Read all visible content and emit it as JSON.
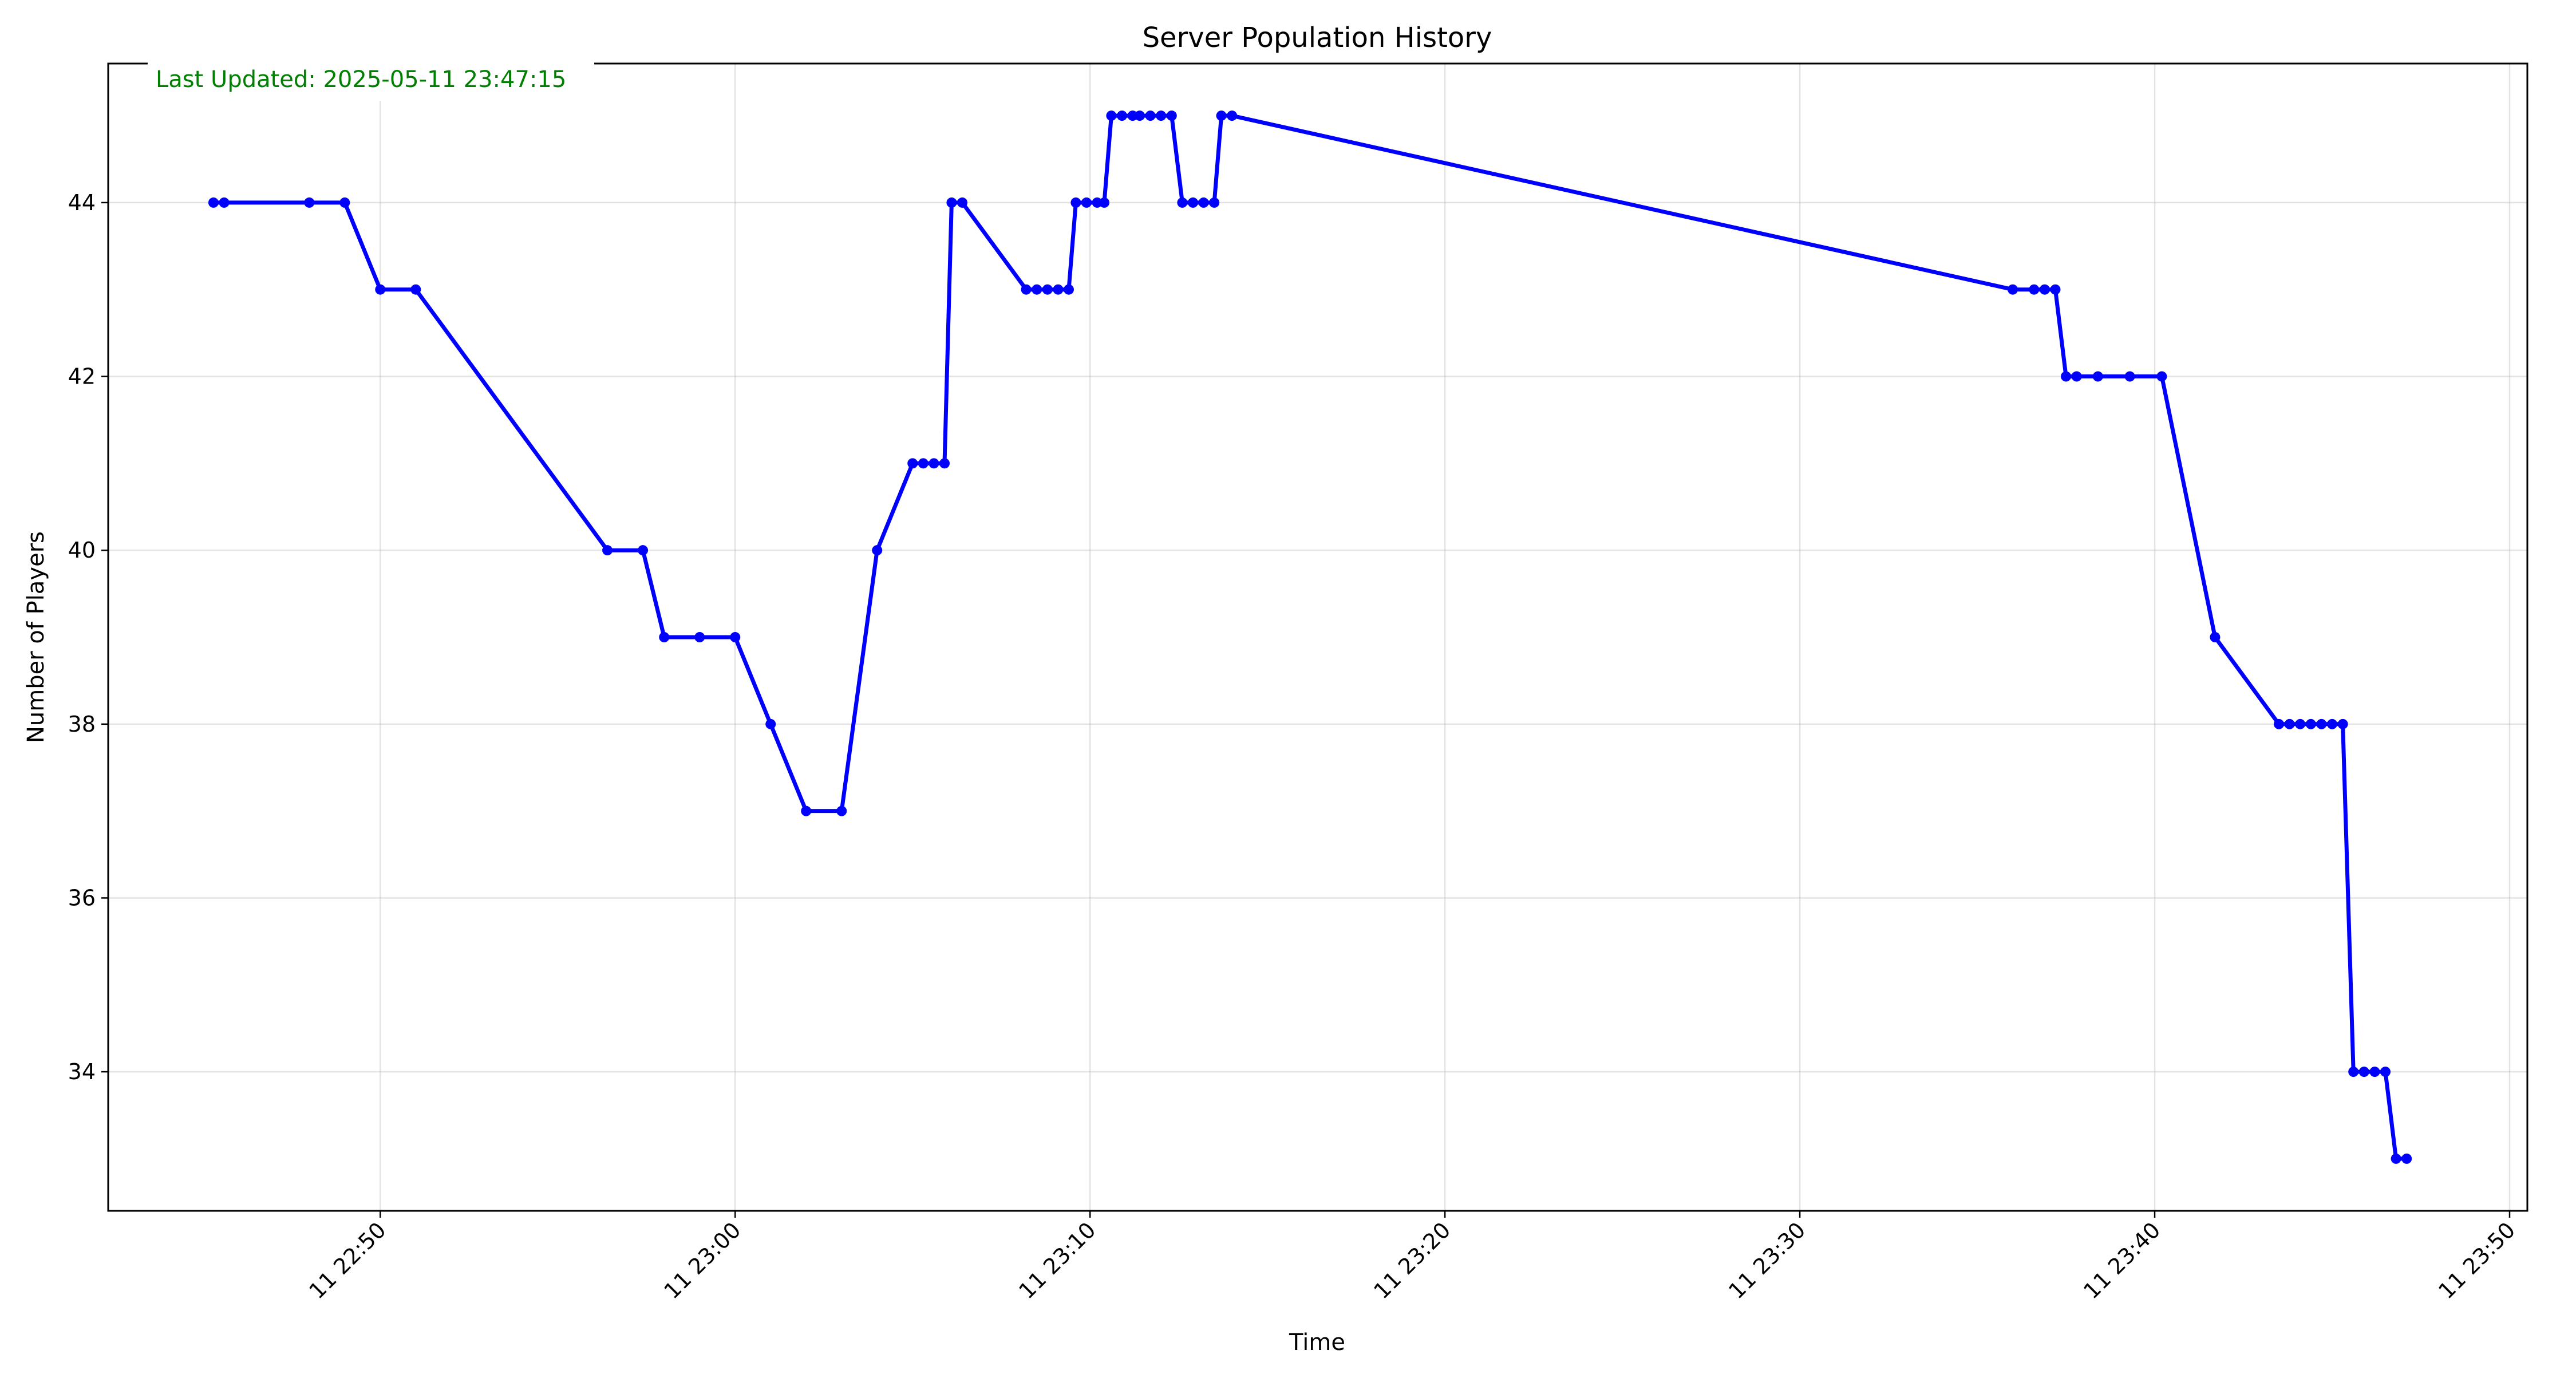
{
  "chart_data": {
    "type": "line",
    "title": "Server Population History",
    "xlabel": "Time",
    "ylabel": "Number of Players",
    "annotation": "Last Updated: 2025-05-11 23:47:15",
    "annotation_color": "#008000",
    "line_color": "#0000ff",
    "grid": true,
    "xlim": [
      "2025-05-11 22:42:20",
      "2025-05-11 23:50:30"
    ],
    "ylim": [
      32.4,
      45.6
    ],
    "x_ticks": [
      {
        "value": "2025-05-11 22:50:00",
        "label": "11 22:50"
      },
      {
        "value": "2025-05-11 23:00:00",
        "label": "11 23:00"
      },
      {
        "value": "2025-05-11 23:10:00",
        "label": "11 23:10"
      },
      {
        "value": "2025-05-11 23:20:00",
        "label": "11 23:20"
      },
      {
        "value": "2025-05-11 23:30:00",
        "label": "11 23:30"
      },
      {
        "value": "2025-05-11 23:40:00",
        "label": "11 23:40"
      },
      {
        "value": "2025-05-11 23:50:00",
        "label": "11 23:50"
      }
    ],
    "y_ticks": [
      34,
      36,
      38,
      40,
      42,
      44
    ],
    "series": [
      {
        "x": [
          "2025-05-11 22:45:18",
          "2025-05-11 22:45:36",
          "2025-05-11 22:48:00",
          "2025-05-11 22:49:00",
          "2025-05-11 22:50:00",
          "2025-05-11 22:51:00",
          "2025-05-11 22:56:24",
          "2025-05-11 22:57:24",
          "2025-05-11 22:58:00",
          "2025-05-11 22:59:00",
          "2025-05-11 23:00:00",
          "2025-05-11 23:01:00",
          "2025-05-11 23:02:00",
          "2025-05-11 23:03:00",
          "2025-05-11 23:04:00",
          "2025-05-11 23:05:00",
          "2025-05-11 23:05:18",
          "2025-05-11 23:05:36",
          "2025-05-11 23:05:54",
          "2025-05-11 23:06:06",
          "2025-05-11 23:06:24",
          "2025-05-11 23:08:12",
          "2025-05-11 23:08:30",
          "2025-05-11 23:08:48",
          "2025-05-11 23:09:06",
          "2025-05-11 23:09:24",
          "2025-05-11 23:09:36",
          "2025-05-11 23:09:54",
          "2025-05-11 23:10:12",
          "2025-05-11 23:10:24",
          "2025-05-11 23:10:36",
          "2025-05-11 23:10:54",
          "2025-05-11 23:11:12",
          "2025-05-11 23:11:24",
          "2025-05-11 23:11:42",
          "2025-05-11 23:12:00",
          "2025-05-11 23:12:18",
          "2025-05-11 23:12:36",
          "2025-05-11 23:12:54",
          "2025-05-11 23:13:12",
          "2025-05-11 23:13:30",
          "2025-05-11 23:13:42",
          "2025-05-11 23:14:00",
          "2025-05-11 23:36:00",
          "2025-05-11 23:36:36",
          "2025-05-11 23:36:54",
          "2025-05-11 23:37:12",
          "2025-05-11 23:37:30",
          "2025-05-11 23:37:48",
          "2025-05-11 23:38:24",
          "2025-05-11 23:39:18",
          "2025-05-11 23:40:12",
          "2025-05-11 23:41:42",
          "2025-05-11 23:43:30",
          "2025-05-11 23:43:48",
          "2025-05-11 23:44:06",
          "2025-05-11 23:44:24",
          "2025-05-11 23:44:42",
          "2025-05-11 23:45:00",
          "2025-05-11 23:45:18",
          "2025-05-11 23:45:36",
          "2025-05-11 23:45:54",
          "2025-05-11 23:46:12",
          "2025-05-11 23:46:30",
          "2025-05-11 23:46:48",
          "2025-05-11 23:47:06"
        ],
        "y": [
          44,
          44,
          44,
          44,
          43,
          43,
          40,
          40,
          39,
          39,
          39,
          38,
          37,
          37,
          40,
          41,
          41,
          41,
          41,
          44,
          44,
          43,
          43,
          43,
          43,
          43,
          44,
          44,
          44,
          44,
          45,
          45,
          45,
          45,
          45,
          45,
          45,
          44,
          44,
          44,
          44,
          45,
          45,
          43,
          43,
          43,
          43,
          42,
          42,
          42,
          42,
          42,
          39,
          38,
          38,
          38,
          38,
          38,
          38,
          38,
          34,
          34,
          34,
          34,
          33,
          33
        ]
      }
    ]
  }
}
